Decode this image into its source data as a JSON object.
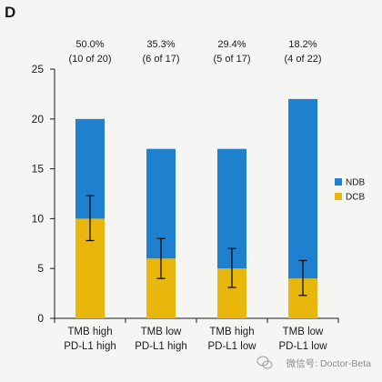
{
  "panel_label": "D",
  "watermark": {
    "text": "微信号: Doctor-Beta",
    "icon": "wechat-icon"
  },
  "colors": {
    "background": "#f5f5f3",
    "axis": "#1a1a1a",
    "error_bar": "#111111",
    "watermark": "#8c8c8c"
  },
  "chart_data": {
    "type": "bar",
    "stacked": true,
    "categories": [
      [
        "TMB high",
        "PD-L1 high"
      ],
      [
        "TMB low",
        "PD-L1 high"
      ],
      [
        "TMB high",
        "PD-L1 low"
      ],
      [
        "TMB low",
        "PD-L1 low"
      ]
    ],
    "series": [
      {
        "name": "DCB",
        "color": "#e9b70c",
        "values": [
          10,
          6,
          5,
          4
        ],
        "error_low": [
          7.8,
          4.0,
          3.1,
          2.3
        ],
        "error_high": [
          12.3,
          8.0,
          7.0,
          5.8
        ]
      },
      {
        "name": "NDB",
        "color": "#1f80d0",
        "values": [
          10,
          11,
          12,
          18
        ]
      }
    ],
    "data_labels": [
      {
        "percent": "50.0%",
        "count": "(10 of 20)"
      },
      {
        "percent": "35.3%",
        "count": "(6 of 17)"
      },
      {
        "percent": "29.4%",
        "count": "(5 of 17)"
      },
      {
        "percent": "18.2%",
        "count": "(4 of 22)"
      }
    ],
    "yticks": [
      0,
      5,
      10,
      15,
      20,
      25
    ],
    "ylim": [
      0,
      25
    ],
    "grid": false,
    "legend": {
      "position": "right"
    }
  }
}
